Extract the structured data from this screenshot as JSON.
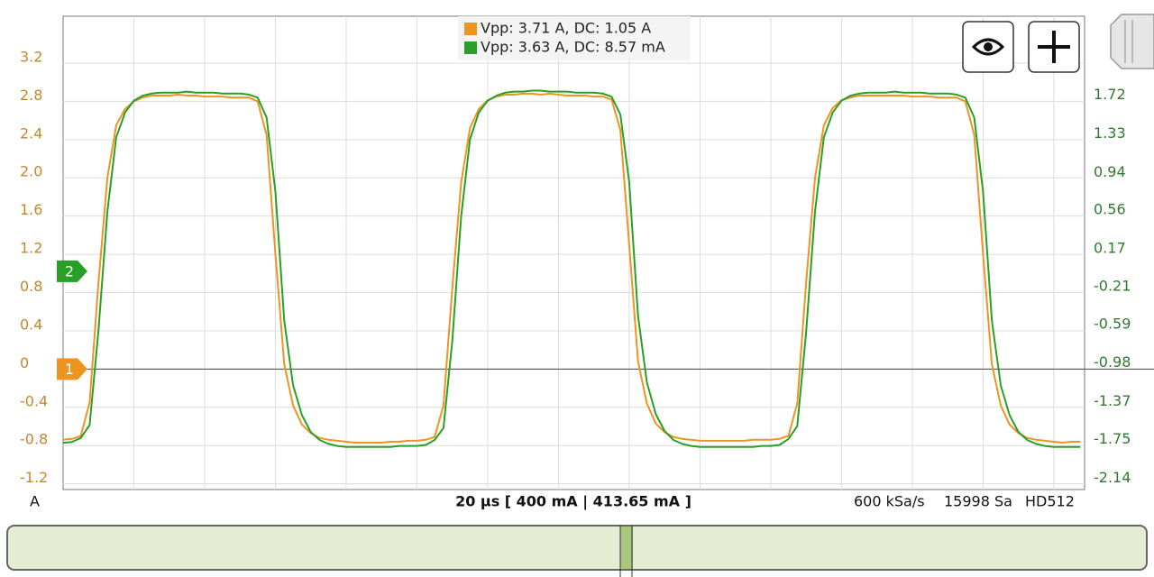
{
  "chart_data": {
    "type": "line",
    "ylabel": "A",
    "x": [
      -20,
      -17.5,
      -15,
      -12.5,
      -10,
      -7.5,
      -5,
      -2.5,
      0,
      2.5,
      5,
      7.5,
      10,
      12.5,
      15,
      17.5,
      20,
      22.5,
      25,
      27.5,
      30,
      32.5,
      35,
      37.5,
      40,
      42.5,
      45,
      47.5,
      50,
      52.5,
      55,
      57.5,
      60,
      62.5,
      65,
      67.5,
      70,
      72.5,
      75,
      77.5,
      80,
      82.5,
      85,
      87.5,
      90,
      92.5,
      95,
      97.5,
      100,
      102.5,
      105,
      107.5,
      110,
      112.5,
      115,
      117.5,
      120,
      122.5,
      125,
      127.5,
      130,
      132.5,
      135,
      137.5,
      140,
      142.5,
      145,
      147.5,
      150,
      152.5,
      155,
      157.5,
      160,
      162.5,
      165,
      167.5,
      170,
      172.5,
      175,
      177.5,
      180,
      182.5,
      185,
      187.5,
      190,
      192.5,
      195,
      197.5,
      200,
      202.5,
      205,
      207.5,
      210,
      212.5,
      215,
      217.5,
      220,
      222.5,
      225,
      227.5,
      230,
      232.5,
      235,
      237.5,
      240,
      242.5,
      245,
      247.5,
      250,
      252.5,
      255,
      257.5,
      260,
      262.5,
      265,
      267.5
    ],
    "xlim": [
      -20,
      268.7
    ],
    "xticks": [
      0,
      20,
      40,
      60,
      80,
      100,
      120,
      140,
      160,
      180,
      200,
      220,
      240,
      260
    ],
    "ylim": [
      -1.26,
      3.69
    ],
    "yticks": [
      -1.2,
      -0.8,
      -0.4,
      0,
      0.4,
      0.8,
      1.2,
      1.6,
      {
        "value": 2,
        "label": "2.0"
      },
      2.4,
      2.8,
      3.2
    ],
    "y2lim": [
      -2.2,
      2.57
    ],
    "y2ticks": [
      -2.14,
      -1.75,
      -1.37,
      -0.98,
      -0.59,
      -0.21,
      0.17,
      0.56,
      0.94,
      1.33,
      1.72
    ],
    "grid": true,
    "series": [
      {
        "name": "Vpp: 3.71 A, DC: 1.05 A",
        "color": "#ee9420",
        "axis": "y",
        "values": [
          -0.74,
          -0.73,
          -0.7,
          -0.35,
          0.9,
          2.0,
          2.55,
          2.72,
          2.8,
          2.84,
          2.86,
          2.86,
          2.86,
          2.87,
          2.86,
          2.86,
          2.85,
          2.85,
          2.85,
          2.84,
          2.84,
          2.84,
          2.8,
          2.45,
          1.2,
          0.05,
          -0.38,
          -0.58,
          -0.67,
          -0.72,
          -0.74,
          -0.75,
          -0.76,
          -0.77,
          -0.77,
          -0.77,
          -0.77,
          -0.76,
          -0.76,
          -0.75,
          -0.75,
          -0.74,
          -0.71,
          -0.38,
          0.85,
          1.95,
          2.52,
          2.72,
          2.81,
          2.85,
          2.87,
          2.87,
          2.88,
          2.88,
          2.87,
          2.88,
          2.87,
          2.86,
          2.86,
          2.86,
          2.85,
          2.85,
          2.82,
          2.5,
          1.3,
          0.08,
          -0.36,
          -0.57,
          -0.66,
          -0.71,
          -0.73,
          -0.74,
          -0.75,
          -0.75,
          -0.75,
          -0.75,
          -0.75,
          -0.75,
          -0.74,
          -0.74,
          -0.74,
          -0.73,
          -0.7,
          -0.36,
          0.9,
          2.0,
          2.55,
          2.73,
          2.81,
          2.84,
          2.86,
          2.86,
          2.86,
          2.86,
          2.86,
          2.86,
          2.85,
          2.85,
          2.85,
          2.84,
          2.84,
          2.84,
          2.8,
          2.45,
          1.2,
          0.05,
          -0.38,
          -0.58,
          -0.67,
          -0.72,
          -0.74,
          -0.75,
          -0.76,
          -0.77,
          -0.76,
          -0.76
        ]
      },
      {
        "name": "Vpp: 3.63 A, DC: 8.57 mA",
        "color": "#28a028",
        "axis": "y2",
        "values": [
          -1.73,
          -1.72,
          -1.68,
          -1.55,
          -0.6,
          0.6,
          1.35,
          1.6,
          1.72,
          1.77,
          1.79,
          1.8,
          1.8,
          1.8,
          1.81,
          1.8,
          1.8,
          1.8,
          1.79,
          1.79,
          1.79,
          1.78,
          1.75,
          1.55,
          0.8,
          -0.5,
          -1.15,
          -1.45,
          -1.62,
          -1.7,
          -1.74,
          -1.76,
          -1.77,
          -1.77,
          -1.77,
          -1.77,
          -1.77,
          -1.77,
          -1.76,
          -1.76,
          -1.76,
          -1.75,
          -1.7,
          -1.58,
          -0.7,
          0.55,
          1.33,
          1.6,
          1.72,
          1.77,
          1.8,
          1.81,
          1.81,
          1.82,
          1.82,
          1.81,
          1.81,
          1.81,
          1.8,
          1.8,
          1.8,
          1.79,
          1.76,
          1.58,
          0.9,
          -0.45,
          -1.12,
          -1.44,
          -1.61,
          -1.7,
          -1.74,
          -1.76,
          -1.77,
          -1.77,
          -1.77,
          -1.77,
          -1.77,
          -1.77,
          -1.77,
          -1.76,
          -1.76,
          -1.75,
          -1.69,
          -1.56,
          -0.62,
          0.6,
          1.35,
          1.6,
          1.72,
          1.77,
          1.79,
          1.8,
          1.8,
          1.8,
          1.81,
          1.8,
          1.8,
          1.8,
          1.79,
          1.79,
          1.79,
          1.78,
          1.75,
          1.55,
          0.8,
          -0.5,
          -1.15,
          -1.45,
          -1.62,
          -1.7,
          -1.74,
          -1.76,
          -1.77,
          -1.77,
          -1.77,
          -1.77
        ]
      }
    ],
    "channel_markers": [
      {
        "label": "1",
        "value": 0,
        "axis": "y"
      },
      {
        "label": "2",
        "value": 0,
        "axis": "y2"
      }
    ]
  },
  "status": {
    "timebase": "20 µs  [ 400 mA | 413.65 mA ]",
    "sample_rate": "600 kSa/s",
    "samples": "15998 Sa",
    "mode": "HD512"
  }
}
